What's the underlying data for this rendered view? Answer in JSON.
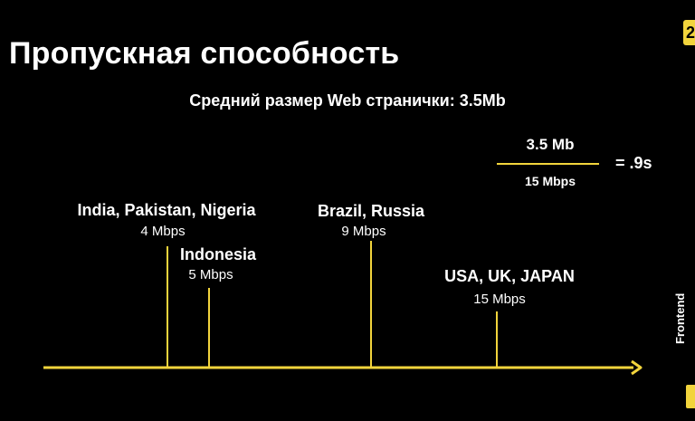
{
  "slide": {
    "title": "Пропускная способность",
    "subtitle": "Средний размер Web странички: 3.5Mb",
    "accent_color": "#f2d43c",
    "background_color": "#000000",
    "page_badge": "2",
    "side_label": "Frontend"
  },
  "formula": {
    "numerator": "3.5 Mb",
    "denominator": "15 Mbps",
    "result": "= .9s"
  },
  "chart_data": {
    "type": "timeline",
    "points": [
      {
        "label": "India, Pakistan, Nigeria",
        "speed_label": "4 Mbps",
        "value": 4
      },
      {
        "label": "Indonesia",
        "speed_label": "5 Mbps",
        "value": 5
      },
      {
        "label": "Brazil, Russia",
        "speed_label": "9 Mbps",
        "value": 9
      },
      {
        "label": "USA, UK, JAPAN",
        "speed_label": "15 Mbps",
        "value": 15
      }
    ]
  }
}
